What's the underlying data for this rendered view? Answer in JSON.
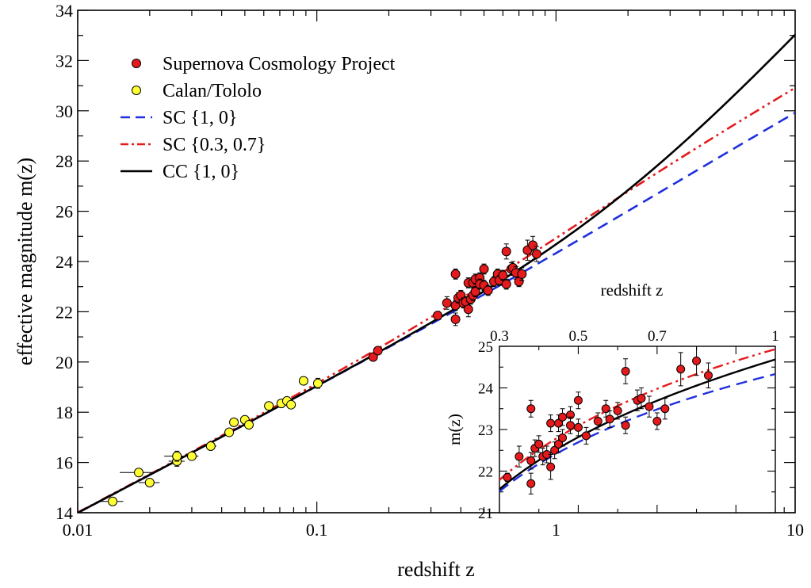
{
  "chart_data": [
    {
      "type": "scatter",
      "panel": "main",
      "xlabel": "redshift z",
      "ylabel": "effective magnitude m(z)",
      "xscale": "log",
      "xlim": [
        0.01,
        10
      ],
      "ylim": [
        14,
        34
      ],
      "x_ticks": [
        0.01,
        0.1,
        1,
        10
      ],
      "x_tick_labels": [
        "0.01",
        "0.1",
        "1",
        "10"
      ],
      "y_ticks": [
        14,
        16,
        18,
        20,
        22,
        24,
        26,
        28,
        30,
        32,
        34
      ],
      "y_tick_labels": [
        "14",
        "16",
        "18",
        "20",
        "22",
        "24",
        "26",
        "28",
        "30",
        "32",
        "34"
      ],
      "legend_position": "top-left",
      "legend": [
        {
          "label": "Supernova Cosmology Project",
          "kind": "marker",
          "color": "#e41a1c"
        },
        {
          "label": "Calan/Tololo",
          "kind": "marker",
          "color": "#ffff33"
        },
        {
          "label": "SC {1, 0}",
          "kind": "dashed",
          "color": "#1f2fdc"
        },
        {
          "label": "SC {0.3, 0.7}",
          "kind": "dashdot",
          "color": "#e41a1c"
        },
        {
          "label": "CC {1, 0}",
          "kind": "solid",
          "color": "#000000"
        }
      ],
      "series": [
        {
          "name": "Supernova Cosmology Project",
          "color": "#e41a1c",
          "points": [
            [
              0.172,
              20.2,
              0.1,
              0
            ],
            [
              0.18,
              20.45,
              0.1,
              0
            ],
            [
              0.32,
              21.85,
              0.1,
              0
            ],
            [
              0.35,
              22.35,
              0.25,
              0.01
            ],
            [
              0.38,
              22.25,
              0.2,
              0
            ],
            [
              0.38,
              21.7,
              0.25,
              0
            ],
            [
              0.38,
              23.5,
              0.2,
              0
            ],
            [
              0.39,
              22.55,
              0.2,
              0
            ],
            [
              0.4,
              22.65,
              0.2,
              0
            ],
            [
              0.41,
              22.35,
              0.2,
              0
            ],
            [
              0.42,
              22.4,
              0.2,
              0
            ],
            [
              0.43,
              23.15,
              0.2,
              0
            ],
            [
              0.43,
              22.1,
              0.3,
              0
            ],
            [
              0.44,
              22.5,
              0.2,
              0
            ],
            [
              0.45,
              23.15,
              0.2,
              0
            ],
            [
              0.45,
              22.65,
              0.2,
              0
            ],
            [
              0.46,
              23.3,
              0.2,
              0
            ],
            [
              0.46,
              22.8,
              0.2,
              0
            ],
            [
              0.48,
              23.35,
              0.2,
              0
            ],
            [
              0.48,
              23.1,
              0.2,
              0
            ],
            [
              0.5,
              23.05,
              0.2,
              0
            ],
            [
              0.5,
              23.7,
              0.2,
              0
            ],
            [
              0.52,
              22.85,
              0.2,
              0
            ],
            [
              0.55,
              23.2,
              0.2,
              0
            ],
            [
              0.57,
              23.5,
              0.2,
              0
            ],
            [
              0.58,
              23.25,
              0.2,
              0
            ],
            [
              0.6,
              23.45,
              0.2,
              0
            ],
            [
              0.62,
              23.1,
              0.2,
              0
            ],
            [
              0.62,
              24.4,
              0.3,
              0
            ],
            [
              0.65,
              23.7,
              0.25,
              0
            ],
            [
              0.66,
              23.75,
              0.25,
              0
            ],
            [
              0.68,
              23.55,
              0.25,
              0
            ],
            [
              0.7,
              23.2,
              0.2,
              0
            ],
            [
              0.72,
              23.5,
              0.25,
              0
            ],
            [
              0.76,
              24.45,
              0.4,
              0
            ],
            [
              0.8,
              24.65,
              0.35,
              0
            ],
            [
              0.83,
              24.3,
              0.3,
              0
            ]
          ]
        },
        {
          "name": "Calan/Tololo",
          "color": "#ffff33",
          "points": [
            [
              0.014,
              14.45,
              0.15,
              0.0015
            ],
            [
              0.018,
              15.6,
              0.15,
              0.003
            ],
            [
              0.02,
              15.2,
              0.15,
              0.002
            ],
            [
              0.026,
              16.05,
              0.2,
              0.002
            ],
            [
              0.026,
              16.25,
              0.2,
              0.003
            ],
            [
              0.03,
              16.25,
              0.15,
              0.002
            ],
            [
              0.036,
              16.65,
              0.15,
              0.002
            ],
            [
              0.043,
              17.2,
              0.15,
              0.002
            ],
            [
              0.045,
              17.6,
              0.15,
              0.002
            ],
            [
              0.05,
              17.7,
              0.15,
              0.002
            ],
            [
              0.052,
              17.5,
              0.15,
              0.002
            ],
            [
              0.063,
              18.25,
              0.15,
              0.002
            ],
            [
              0.071,
              18.35,
              0.15,
              0.003
            ],
            [
              0.075,
              18.45,
              0.15,
              0.002
            ],
            [
              0.078,
              18.3,
              0.15,
              0.002
            ],
            [
              0.088,
              19.25,
              0.15,
              0.002
            ],
            [
              0.101,
              19.15,
              0.2,
              0.003
            ]
          ]
        }
      ]
    },
    {
      "type": "scatter",
      "panel": "inset",
      "xlabel": "redshift z",
      "ylabel": "m(z)",
      "xlim": [
        0.3,
        1
      ],
      "ylim": [
        21,
        25
      ],
      "x_ticks": [
        0.3,
        0.5,
        0.7,
        1
      ],
      "x_tick_labels": [
        "0.3",
        "0.5",
        "0.7",
        "1"
      ],
      "y_ticks": [
        21,
        22,
        23,
        24,
        25
      ],
      "y_tick_labels": [
        "21",
        "22",
        "23",
        "24",
        "25"
      ],
      "x_axis_position": "top",
      "legend_position": "none"
    }
  ]
}
